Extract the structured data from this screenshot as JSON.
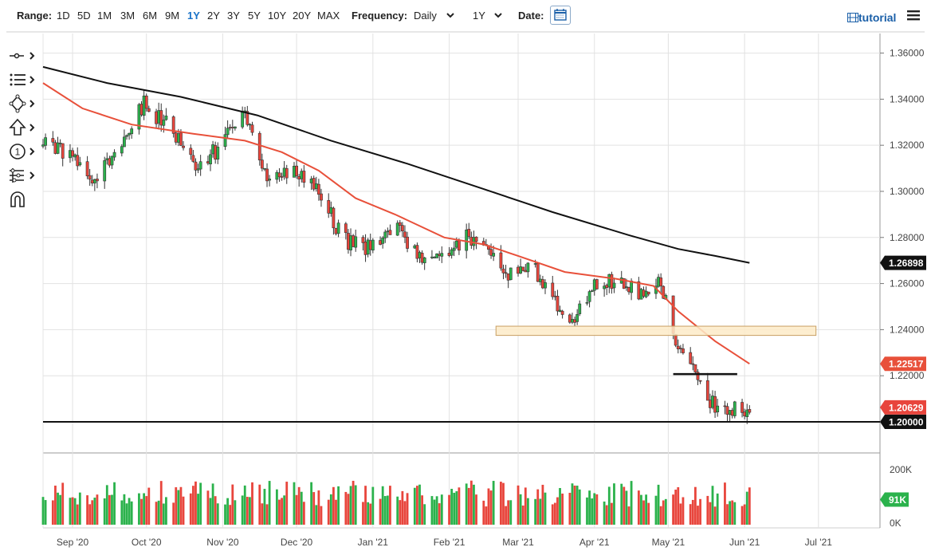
{
  "toolbar": {
    "range_label": "Range:",
    "ranges": [
      "1D",
      "5D",
      "1M",
      "3M",
      "6M",
      "9M",
      "1Y",
      "2Y",
      "3Y",
      "5Y",
      "10Y",
      "20Y",
      "MAX"
    ],
    "active_range": "1Y",
    "frequency_label": "Frequency:",
    "frequency_value": "Daily",
    "period_value": "1Y",
    "date_label": "Date:",
    "tutorial_label": "tutorial"
  },
  "left_tools": [
    "crosshair-tool",
    "indicators-tool",
    "drawing-tool",
    "arrow-tool",
    "event-tool",
    "compare-tool",
    "magnet-tool"
  ],
  "colors": {
    "up": "#2bb24c",
    "down": "#e8453c",
    "ma_fast": "#e8503a",
    "ma_slow": "#111111",
    "support_zone_fill": "#fdebc8",
    "support_zone_stroke": "#c8a064",
    "accent_blue": "#1a73c8",
    "volume_badge": "#2bb24c"
  },
  "chart_data": {
    "type": "candlestick",
    "instrument_hint": "GBP/USD",
    "y_axis": {
      "ticks": [
        "1.36000",
        "1.34000",
        "1.32000",
        "1.30000",
        "1.28000",
        "1.26000",
        "1.24000",
        "1.22000",
        "1.20000"
      ],
      "ylim": [
        1.1955,
        1.3685
      ]
    },
    "x_axis": {
      "ticks": [
        "Sep '20",
        "Oct '20",
        "Nov '20",
        "Dec '20",
        "Jan '21",
        "Feb '21",
        "Mar '21",
        "Apr '21",
        "May '21",
        "Jun '21",
        "Jul '21"
      ],
      "start_date": "2020-08-20",
      "end_date": "2021-07-26"
    },
    "price_badges": [
      {
        "value": "1.26898",
        "series": "ma_slow"
      },
      {
        "value": "1.22517",
        "series": "ma_fast"
      },
      {
        "value": "1.20629",
        "series": "last_price"
      },
      {
        "value": "1.20000",
        "series": "horizontal_line"
      }
    ],
    "horizontal_line": 1.2,
    "support_zone": {
      "from_date": "2021-02-20",
      "to_date": "2021-06-30",
      "low": 1.2375,
      "high": 1.2415
    },
    "short_segment": {
      "from_date": "2021-05-03",
      "to_date": "2021-05-29",
      "value": 1.2207
    },
    "ma_slow_path": [
      [
        "2020-08-20",
        1.354
      ],
      [
        "2020-09-15",
        1.347
      ],
      [
        "2020-10-15",
        1.341
      ],
      [
        "2020-11-15",
        1.333
      ],
      [
        "2020-12-15",
        1.322
      ],
      [
        "2021-01-15",
        1.312
      ],
      [
        "2021-02-15",
        1.301
      ],
      [
        "2021-03-15",
        1.291
      ],
      [
        "2021-04-15",
        1.281
      ],
      [
        "2021-05-05",
        1.275
      ],
      [
        "2021-05-20",
        1.272
      ],
      [
        "2021-06-03",
        1.269
      ]
    ],
    "ma_fast_path": [
      [
        "2020-08-20",
        1.347
      ],
      [
        "2020-09-05",
        1.336
      ],
      [
        "2020-09-25",
        1.329
      ],
      [
        "2020-10-20",
        1.325
      ],
      [
        "2020-11-10",
        1.322
      ],
      [
        "2020-11-25",
        1.317
      ],
      [
        "2020-12-10",
        1.309
      ],
      [
        "2020-12-25",
        1.297
      ],
      [
        "2021-01-10",
        1.29
      ],
      [
        "2021-01-30",
        1.28
      ],
      [
        "2021-02-15",
        1.277
      ],
      [
        "2021-03-01",
        1.272
      ],
      [
        "2021-03-20",
        1.265
      ],
      [
        "2021-04-10",
        1.262
      ],
      [
        "2021-04-25",
        1.259
      ],
      [
        "2021-05-05",
        1.248
      ],
      [
        "2021-05-20",
        1.235
      ],
      [
        "2021-06-03",
        1.2252
      ]
    ],
    "ohlc_anchors": [
      [
        "2020-08-20",
        1.32
      ],
      [
        "2020-09-01",
        1.317
      ],
      [
        "2020-09-10",
        1.305
      ],
      [
        "2020-09-20",
        1.318
      ],
      [
        "2020-09-30",
        1.338
      ],
      [
        "2020-10-10",
        1.328
      ],
      [
        "2020-10-20",
        1.312
      ],
      [
        "2020-10-30",
        1.318
      ],
      [
        "2020-11-10",
        1.334
      ],
      [
        "2020-11-20",
        1.305
      ],
      [
        "2020-11-30",
        1.31
      ],
      [
        "2020-12-10",
        1.3
      ],
      [
        "2020-12-20",
        1.279
      ],
      [
        "2020-12-31",
        1.275
      ],
      [
        "2021-01-10",
        1.285
      ],
      [
        "2021-01-20",
        1.27
      ],
      [
        "2021-01-30",
        1.27
      ],
      [
        "2021-02-08",
        1.282
      ],
      [
        "2021-02-18",
        1.272
      ],
      [
        "2021-02-28",
        1.262
      ],
      [
        "2021-03-05",
        1.27
      ],
      [
        "2021-03-15",
        1.255
      ],
      [
        "2021-03-22",
        1.243
      ],
      [
        "2021-03-31",
        1.258
      ],
      [
        "2021-04-10",
        1.262
      ],
      [
        "2021-04-20",
        1.255
      ],
      [
        "2021-04-28",
        1.262
      ],
      [
        "2021-05-03",
        1.237
      ],
      [
        "2021-05-10",
        1.225
      ],
      [
        "2021-05-18",
        1.208
      ],
      [
        "2021-05-25",
        1.206
      ],
      [
        "2021-06-03",
        1.2063
      ]
    ],
    "volume": {
      "y_ticks": [
        "200K",
        "0K"
      ],
      "ylim": [
        0,
        240000
      ],
      "last_value_label": "91K",
      "typical_range": [
        65000,
        160000
      ]
    }
  }
}
